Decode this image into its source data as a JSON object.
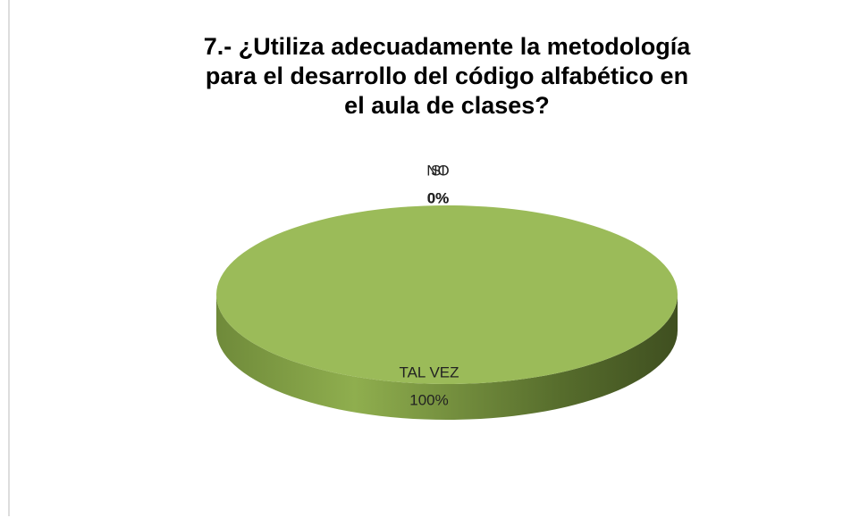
{
  "chart_data": {
    "type": "pie",
    "title": "7.- ¿Utiliza adecuadamente la metodología para el desarrollo del código alfabético en el aula de clases?",
    "categories": [
      "SI",
      "NO",
      "TAL VEZ"
    ],
    "values": [
      0,
      0,
      100
    ],
    "value_labels": [
      "0%",
      "0%",
      "100%"
    ],
    "colors": [
      "#4f81bd",
      "#c0504d",
      "#9bbb59"
    ]
  }
}
